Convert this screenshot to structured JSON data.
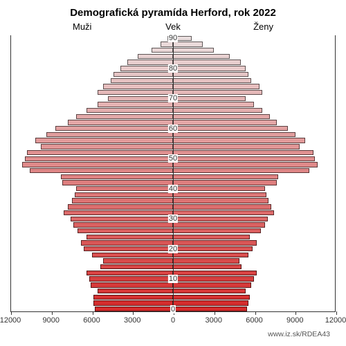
{
  "title": "Demografická pyramída Herford, rok 2022",
  "title_fontsize": 15,
  "labels": {
    "left": "Muži",
    "center": "Vek",
    "right": "Ženy"
  },
  "label_fontsize": 13,
  "source": "www.iz.sk/RDEA43",
  "chart": {
    "type": "population-pyramid",
    "x_max": 12000,
    "x_ticks_left": [
      12000,
      9000,
      6000,
      3000,
      0
    ],
    "x_ticks_right": [
      3000,
      6000,
      9000,
      12000
    ],
    "y_labels": [
      0,
      10,
      20,
      30,
      40,
      50,
      60,
      70,
      80,
      90
    ],
    "y_label_interval": 5,
    "background_color": "#ffffff",
    "border_color": "#333333",
    "bar_border_color": "rgba(0,0,0,0.6)",
    "bar_gap_ratio": 0.15,
    "age_groups": [
      {
        "age": 0,
        "male": 5800,
        "female": 5500,
        "color": "#d42a2a"
      },
      {
        "age": 2,
        "male": 5900,
        "female": 5600,
        "color": "#d42e2e"
      },
      {
        "age": 4,
        "male": 5900,
        "female": 5700,
        "color": "#d53232"
      },
      {
        "age": 6,
        "male": 5600,
        "female": 5400,
        "color": "#d53636"
      },
      {
        "age": 8,
        "male": 6100,
        "female": 5800,
        "color": "#d63a3a"
      },
      {
        "age": 10,
        "male": 6200,
        "female": 6000,
        "color": "#d63e3e"
      },
      {
        "age": 12,
        "male": 6400,
        "female": 6200,
        "color": "#d74242"
      },
      {
        "age": 14,
        "male": 5400,
        "female": 5100,
        "color": "#d74646"
      },
      {
        "age": 16,
        "male": 5200,
        "female": 4900,
        "color": "#d84a4a"
      },
      {
        "age": 18,
        "male": 6000,
        "female": 5600,
        "color": "#d84e4e"
      },
      {
        "age": 20,
        "male": 6600,
        "female": 5900,
        "color": "#d95252"
      },
      {
        "age": 22,
        "male": 6800,
        "female": 6200,
        "color": "#d95656"
      },
      {
        "age": 24,
        "male": 6400,
        "female": 5700,
        "color": "#da5a5a"
      },
      {
        "age": 26,
        "male": 7100,
        "female": 6500,
        "color": "#da5e5e"
      },
      {
        "age": 28,
        "male": 7400,
        "female": 6800,
        "color": "#db6262"
      },
      {
        "age": 30,
        "male": 7600,
        "female": 7000,
        "color": "#db6666"
      },
      {
        "age": 32,
        "male": 8100,
        "female": 7500,
        "color": "#dc6a6a"
      },
      {
        "age": 34,
        "male": 7800,
        "female": 7300,
        "color": "#dc6e6e"
      },
      {
        "age": 36,
        "male": 7500,
        "female": 7100,
        "color": "#dd7272"
      },
      {
        "age": 38,
        "male": 7300,
        "female": 6900,
        "color": "#dd7676"
      },
      {
        "age": 40,
        "male": 7200,
        "female": 6800,
        "color": "#de7a7a"
      },
      {
        "age": 42,
        "male": 8200,
        "female": 7700,
        "color": "#de7e7e"
      },
      {
        "age": 44,
        "male": 8300,
        "female": 7800,
        "color": "#df8282"
      },
      {
        "age": 46,
        "male": 10600,
        "female": 10100,
        "color": "#df8686"
      },
      {
        "age": 48,
        "male": 11200,
        "female": 10700,
        "color": "#e08a8a"
      },
      {
        "age": 50,
        "male": 11000,
        "female": 10500,
        "color": "#e08e8e"
      },
      {
        "age": 52,
        "male": 10800,
        "female": 10400,
        "color": "#e19292"
      },
      {
        "age": 54,
        "male": 9800,
        "female": 9400,
        "color": "#e19696"
      },
      {
        "age": 56,
        "male": 10200,
        "female": 9800,
        "color": "#e29a9a"
      },
      {
        "age": 58,
        "male": 9400,
        "female": 9100,
        "color": "#e29e9e"
      },
      {
        "age": 60,
        "male": 8700,
        "female": 8500,
        "color": "#e3a2a2"
      },
      {
        "age": 62,
        "male": 7800,
        "female": 7700,
        "color": "#e3a6a6"
      },
      {
        "age": 64,
        "male": 7200,
        "female": 7200,
        "color": "#e4aaaa"
      },
      {
        "age": 66,
        "male": 6400,
        "female": 6600,
        "color": "#e4aeae"
      },
      {
        "age": 68,
        "male": 5600,
        "female": 6000,
        "color": "#e5b2b2"
      },
      {
        "age": 70,
        "male": 4800,
        "female": 5400,
        "color": "#e5b6b6"
      },
      {
        "age": 72,
        "male": 5600,
        "female": 6600,
        "color": "#e6baba"
      },
      {
        "age": 74,
        "male": 5200,
        "female": 6400,
        "color": "#e6bebe"
      },
      {
        "age": 76,
        "male": 4600,
        "female": 5800,
        "color": "#e7c2c2"
      },
      {
        "age": 78,
        "male": 4400,
        "female": 5600,
        "color": "#e7c6c6"
      },
      {
        "age": 80,
        "male": 3900,
        "female": 5400,
        "color": "#e8caca"
      },
      {
        "age": 82,
        "male": 3400,
        "female": 5000,
        "color": "#e8cece"
      },
      {
        "age": 84,
        "male": 2600,
        "female": 4200,
        "color": "#e9d2d2"
      },
      {
        "age": 86,
        "male": 1600,
        "female": 3000,
        "color": "#e9d6d6"
      },
      {
        "age": 88,
        "male": 900,
        "female": 2200,
        "color": "#eadada"
      },
      {
        "age": 90,
        "male": 400,
        "female": 1400,
        "color": "#eadede"
      }
    ]
  }
}
